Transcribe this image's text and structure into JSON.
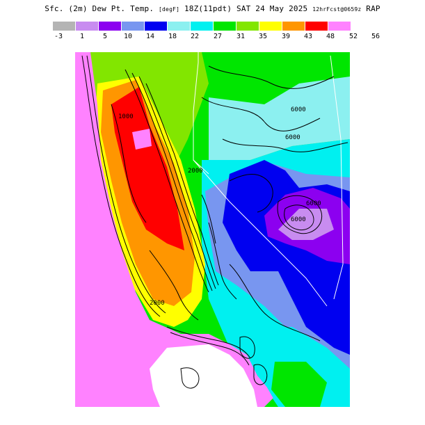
{
  "header": {
    "title_main": "Sfc. (2m) Dew Pt. Temp.",
    "units": "[degF]",
    "run": "18Z(11pdt)",
    "valid": "SAT 24 May 2025",
    "forecast": "12hrFcst@0659z",
    "model": "RAP"
  },
  "legend": {
    "colors": [
      "#b4b4b4",
      "#c88cf0",
      "#8c00f0",
      "#7896f0",
      "#0000f0",
      "#8cf0f0",
      "#00f0f0",
      "#00e600",
      "#82e600",
      "#ffff00",
      "#ff9600",
      "#ff0000",
      "#ff82ff"
    ],
    "ticks": [
      "-3",
      "1",
      "5",
      "10",
      "14",
      "18",
      "22",
      "27",
      "31",
      "35",
      "39",
      "43",
      "48",
      "52",
      "56"
    ]
  },
  "contour_labels": [
    "6000",
    "6000",
    "6000",
    "6000",
    "2000",
    "2000",
    "1000"
  ]
}
